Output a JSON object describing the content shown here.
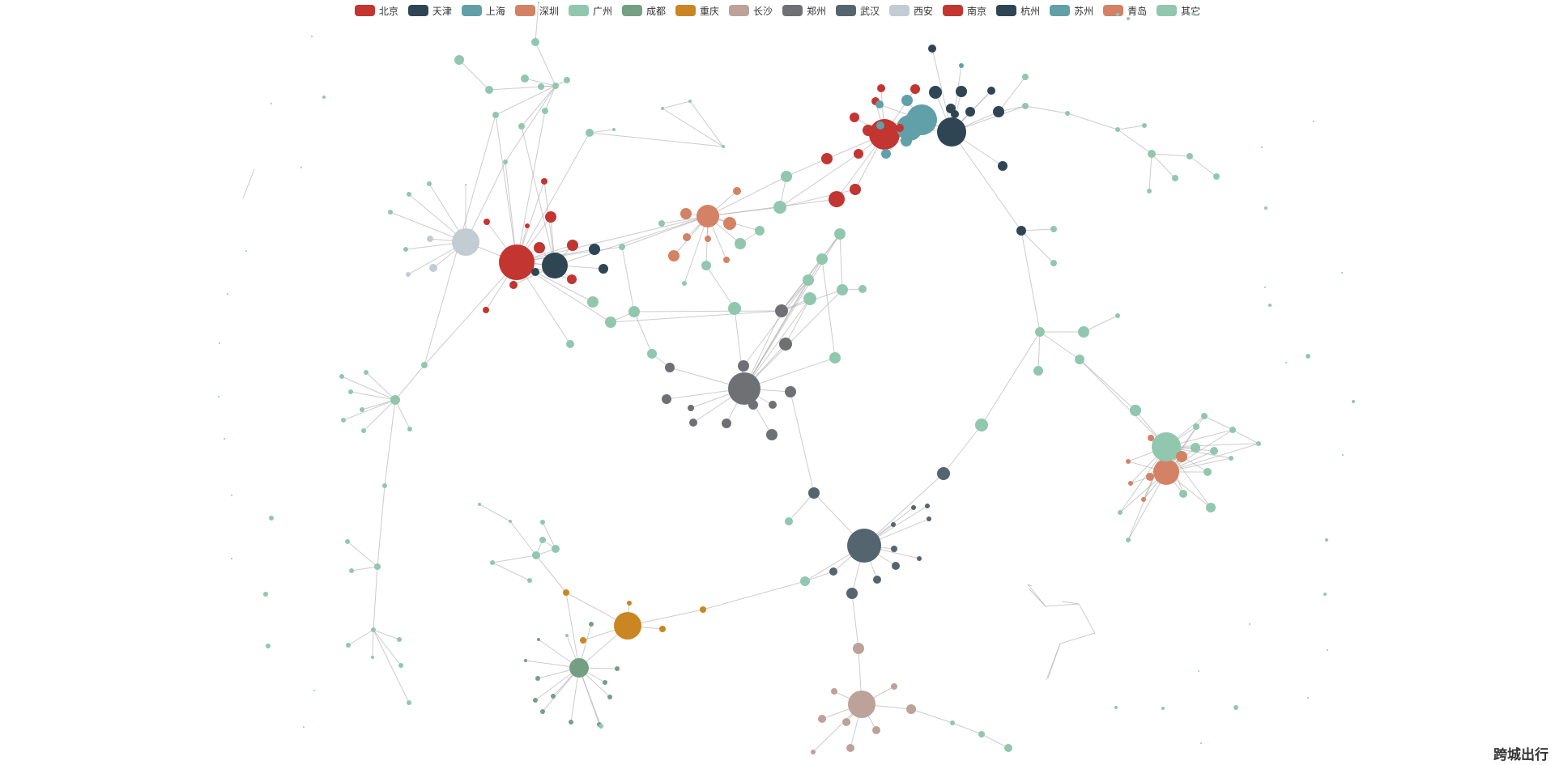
{
  "chart_data": {
    "type": "graph",
    "title": "跨城出行",
    "categories": [
      {
        "name": "北京",
        "color": "#c23531"
      },
      {
        "name": "天津",
        "color": "#2f4554"
      },
      {
        "name": "上海",
        "color": "#61a0a8"
      },
      {
        "name": "深圳",
        "color": "#d48265"
      },
      {
        "name": "广州",
        "color": "#91c7ae"
      },
      {
        "name": "成都",
        "color": "#749f83"
      },
      {
        "name": "重庆",
        "color": "#ca8622"
      },
      {
        "name": "长沙",
        "color": "#bda29a"
      },
      {
        "name": "郑州",
        "color": "#6e7074"
      },
      {
        "name": "武汉",
        "color": "#546570"
      },
      {
        "name": "西安",
        "color": "#c4ccd3"
      },
      {
        "name": "南京",
        "color": "#c23531"
      },
      {
        "name": "杭州",
        "color": "#2f4554"
      },
      {
        "name": "苏州",
        "color": "#61a0a8"
      },
      {
        "name": "青岛",
        "color": "#d48265"
      },
      {
        "name": "其它",
        "color": "#91c7ae"
      }
    ],
    "legend_position": "top-center",
    "edge_color": "#aaaaaa"
  }
}
